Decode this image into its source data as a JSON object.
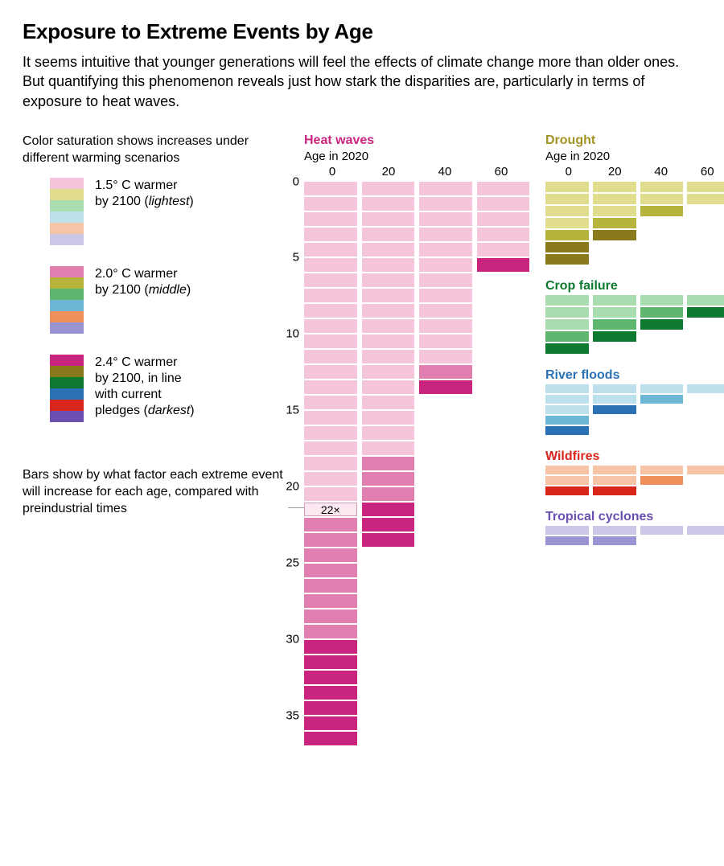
{
  "title": "Exposure to Extreme Events by Age",
  "intro": "It seems intuitive that younger generations will feel the effects of climate change more than older ones. But quantifying this phenomenon reveals just how stark the disparities are, particularly in terms of exposure to heat waves.",
  "legend": {
    "caption": "Color saturation shows increases under different warming scenarios",
    "scenarios": [
      {
        "label_html": "1.5° C warmer<br>by 2100 (<em>lightest</em>)",
        "swatches": [
          "#f5c5db",
          "#e0dd8f",
          "#a9ddb0",
          "#bde1ec",
          "#f6c4a6",
          "#cac8e6"
        ]
      },
      {
        "label_html": "2.0° C warmer<br>by 2100 (<em>middle</em>)",
        "swatches": [
          "#e07fb0",
          "#b7b43e",
          "#5fb66e",
          "#6cb6d6",
          "#ef8f5b",
          "#9a95d2"
        ]
      },
      {
        "label_html": "2.4° C warmer<br>by 2100, in line<br>with current<br>pledges (<em>darkest</em>)",
        "swatches": [
          "#c9257f",
          "#8a7a1b",
          "#0e7a2f",
          "#2a72b5",
          "#d9261c",
          "#6a4fb0"
        ]
      }
    ],
    "factor_note": "Bars show by what factor each extreme event will increase for each age, compared with preindustrial times"
  },
  "heat": {
    "title": "Heat waves",
    "title_color": "#c9257f",
    "axis_label": "Age in 2020",
    "ages": [
      "0",
      "20",
      "40",
      "60"
    ],
    "y_ticks": [
      0,
      5,
      10,
      15,
      20,
      25,
      30,
      35
    ],
    "seg_h": 17,
    "seg_gap": 2,
    "colors": {
      "light": "#f5c5db",
      "mid": "#e07fb0",
      "dark": "#c9257f"
    },
    "columns": [
      {
        "light": 22,
        "mid": 8,
        "dark": 7
      },
      {
        "light": 18,
        "mid": 3,
        "dark": 3
      },
      {
        "light": 12,
        "mid": 1,
        "dark": 1
      },
      {
        "light": 5,
        "mid": 0,
        "dark": 1
      }
    ],
    "annot": {
      "text": "22×",
      "col": 0,
      "row": 22
    }
  },
  "side": [
    {
      "title": "Drought",
      "title_color": "#a39323",
      "axis_label": "Age in 2020",
      "ages": [
        "0",
        "20",
        "40",
        "60"
      ],
      "seg_h": 13,
      "colors": {
        "light": "#e0dd8f",
        "mid": "#b7b43e",
        "dark": "#8a7a1b"
      },
      "columns": [
        {
          "light": 4,
          "mid": 1,
          "dark": 2
        },
        {
          "light": 3,
          "mid": 1,
          "dark": 1
        },
        {
          "light": 2,
          "mid": 1,
          "dark": 0
        },
        {
          "light": 2,
          "mid": 0,
          "dark": 0
        }
      ]
    },
    {
      "title": "Crop failure",
      "title_color": "#0e7a2f",
      "seg_h": 13,
      "colors": {
        "light": "#a9ddb0",
        "mid": "#5fb66e",
        "dark": "#0e7a2f"
      },
      "columns": [
        {
          "light": 3,
          "mid": 1,
          "dark": 1
        },
        {
          "light": 2,
          "mid": 1,
          "dark": 1
        },
        {
          "light": 1,
          "mid": 1,
          "dark": 1
        },
        {
          "light": 1,
          "mid": 0,
          "dark": 1
        }
      ]
    },
    {
      "title": "River floods",
      "title_color": "#2a72b5",
      "seg_h": 11,
      "colors": {
        "light": "#bde1ec",
        "mid": "#6cb6d6",
        "dark": "#2a72b5"
      },
      "columns": [
        {
          "light": 3,
          "mid": 1,
          "dark": 1
        },
        {
          "light": 2,
          "mid": 0,
          "dark": 1
        },
        {
          "light": 1,
          "mid": 1,
          "dark": 0
        },
        {
          "light": 1,
          "mid": 0,
          "dark": 0
        }
      ]
    },
    {
      "title": "Wildfires",
      "title_color": "#d9261c",
      "seg_h": 11,
      "colors": {
        "light": "#f6c4a6",
        "mid": "#ef8f5b",
        "dark": "#d9261c"
      },
      "columns": [
        {
          "light": 2,
          "mid": 0,
          "dark": 1
        },
        {
          "light": 2,
          "mid": 0,
          "dark": 1
        },
        {
          "light": 1,
          "mid": 1,
          "dark": 0
        },
        {
          "light": 1,
          "mid": 0,
          "dark": 0
        }
      ]
    },
    {
      "title": "Tropical cyclones",
      "title_color": "#6a4fb0",
      "seg_h": 11,
      "colors": {
        "light": "#cac8e6",
        "mid": "#9a95d2",
        "dark": "#6a4fb0"
      },
      "columns": [
        {
          "light": 1,
          "mid": 1,
          "dark": 0
        },
        {
          "light": 1,
          "mid": 1,
          "dark": 0
        },
        {
          "light": 1,
          "mid": 0,
          "dark": 0
        },
        {
          "light": 1,
          "mid": 0,
          "dark": 0
        }
      ]
    }
  ]
}
